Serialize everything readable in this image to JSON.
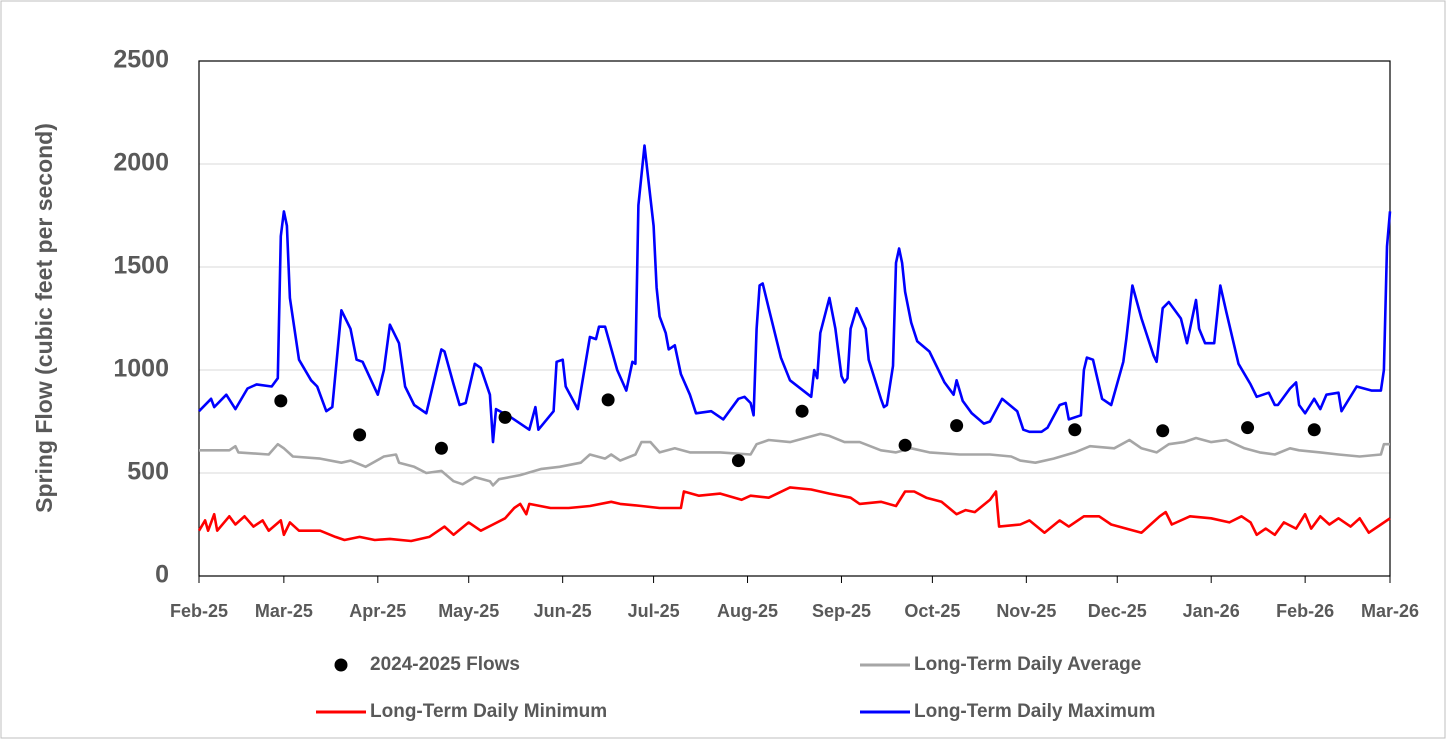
{
  "chart_data": {
    "type": "line",
    "y_label": "Spring Flow (cubic feet per second)",
    "xlim": [
      0,
      393
    ],
    "xticks": [
      {
        "value": 0,
        "label": "Feb-25"
      },
      {
        "value": 28,
        "label": "Mar-25"
      },
      {
        "value": 59,
        "label": "Apr-25"
      },
      {
        "value": 89,
        "label": "May-25"
      },
      {
        "value": 120,
        "label": "Jun-25"
      },
      {
        "value": 150,
        "label": "Jul-25"
      },
      {
        "value": 181,
        "label": "Aug-25"
      },
      {
        "value": 212,
        "label": "Sep-25"
      },
      {
        "value": 242,
        "label": "Oct-25"
      },
      {
        "value": 273,
        "label": "Nov-25"
      },
      {
        "value": 303,
        "label": "Dec-25"
      },
      {
        "value": 334,
        "label": "Jan-26"
      },
      {
        "value": 365,
        "label": "Feb-26"
      },
      {
        "value": 393,
        "label": "Mar-26"
      }
    ],
    "ylim": [
      0,
      2500
    ],
    "yticks": [
      0,
      500,
      1000,
      1500,
      2000,
      2500
    ],
    "grid": true,
    "legend": "bottom",
    "series": [
      {
        "name": "2024-2025 Flows",
        "type": "scatter",
        "color": "#000000",
        "x": [
          27,
          53,
          80,
          101,
          135,
          178,
          199,
          233,
          250,
          289,
          318,
          346,
          368
        ],
        "values": [
          850,
          685,
          620,
          770,
          855,
          560,
          800,
          635,
          730,
          710,
          705,
          720,
          710
        ]
      },
      {
        "name": "Long-Term Daily Average",
        "type": "line",
        "color": "#a6a6a6",
        "x": [
          0,
          10,
          12,
          13,
          23,
          26,
          28,
          31,
          40,
          47,
          50,
          55,
          61,
          65,
          66,
          71,
          75,
          80,
          84,
          87,
          91,
          96,
          97,
          99,
          106,
          113,
          119,
          126,
          129,
          134,
          136,
          139,
          144,
          146,
          149,
          152,
          157,
          162,
          172,
          182,
          184,
          188,
          195,
          205,
          208,
          213,
          218,
          225,
          230,
          235,
          241,
          251,
          261,
          268,
          271,
          276,
          282,
          289,
          294,
          302,
          307,
          311,
          316,
          320,
          325,
          329,
          334,
          339,
          345,
          350,
          355,
          360,
          363,
          370,
          376,
          383,
          390,
          391,
          393
        ],
        "values": [
          610,
          610,
          630,
          600,
          590,
          640,
          620,
          580,
          570,
          550,
          560,
          530,
          580,
          590,
          550,
          530,
          500,
          510,
          460,
          445,
          480,
          460,
          440,
          470,
          490,
          520,
          530,
          550,
          590,
          570,
          590,
          560,
          590,
          650,
          650,
          600,
          620,
          600,
          600,
          590,
          640,
          660,
          650,
          690,
          680,
          650,
          650,
          610,
          600,
          620,
          600,
          590,
          590,
          580,
          560,
          550,
          570,
          600,
          630,
          620,
          660,
          620,
          600,
          640,
          650,
          670,
          650,
          660,
          620,
          600,
          590,
          620,
          610,
          600,
          590,
          580,
          590,
          640,
          640
        ]
      },
      {
        "name": "Long-Term Daily Minimum",
        "type": "line",
        "color": "#ff0000",
        "x": [
          0,
          2,
          3,
          5,
          6,
          10,
          12,
          15,
          18,
          21,
          23,
          27,
          28,
          30,
          33,
          40,
          45,
          48,
          53,
          58,
          63,
          70,
          76,
          81,
          84,
          89,
          93,
          97,
          101,
          104,
          106,
          108,
          109,
          116,
          122,
          129,
          136,
          139,
          146,
          152,
          159,
          160,
          165,
          172,
          179,
          182,
          188,
          195,
          202,
          208,
          215,
          218,
          225,
          230,
          233,
          236,
          240,
          245,
          250,
          253,
          256,
          261,
          263,
          264,
          271,
          274,
          279,
          284,
          287,
          292,
          297,
          301,
          306,
          311,
          314,
          317,
          319,
          321,
          327,
          334,
          340,
          344,
          347,
          349,
          352,
          355,
          358,
          362,
          365,
          367,
          370,
          373,
          376,
          380,
          383,
          386,
          390,
          393
        ],
        "values": [
          220,
          270,
          220,
          300,
          220,
          290,
          250,
          290,
          240,
          270,
          220,
          270,
          200,
          260,
          220,
          220,
          190,
          175,
          190,
          175,
          180,
          170,
          190,
          240,
          200,
          260,
          220,
          250,
          280,
          330,
          350,
          300,
          350,
          330,
          330,
          340,
          360,
          350,
          340,
          330,
          330,
          410,
          390,
          400,
          370,
          390,
          380,
          430,
          420,
          400,
          380,
          350,
          360,
          340,
          410,
          410,
          380,
          360,
          300,
          320,
          310,
          370,
          410,
          240,
          250,
          270,
          210,
          270,
          240,
          290,
          290,
          250,
          230,
          210,
          250,
          290,
          310,
          250,
          290,
          280,
          260,
          290,
          260,
          200,
          230,
          200,
          260,
          230,
          300,
          230,
          290,
          250,
          280,
          240,
          280,
          210,
          250,
          280
        ]
      },
      {
        "name": "Long-Term Daily Maximum",
        "type": "line",
        "color": "#0000ff",
        "x": [
          0,
          4,
          5,
          9,
          12,
          16,
          19,
          24,
          26,
          27,
          28,
          29,
          30,
          33,
          37,
          39,
          42,
          44,
          47,
          50,
          52,
          54,
          59,
          61,
          63,
          66,
          68,
          71,
          75,
          80,
          81,
          84,
          86,
          88,
          91,
          93,
          96,
          97,
          98,
          103,
          109,
          111,
          112,
          117,
          118,
          120,
          121,
          125,
          129,
          131,
          132,
          134,
          138,
          141,
          143,
          144,
          145,
          147,
          148,
          150,
          151,
          152,
          154,
          155,
          157,
          159,
          162,
          164,
          169,
          173,
          178,
          180,
          182,
          183,
          184,
          185,
          186,
          188,
          192,
          195,
          202,
          203,
          204,
          205,
          208,
          210,
          212,
          213,
          214,
          215,
          217,
          220,
          221,
          225,
          226,
          227,
          229,
          230,
          231,
          232,
          233,
          235,
          237,
          241,
          246,
          249,
          250,
          252,
          255,
          259,
          261,
          265,
          270,
          272,
          274,
          278,
          280,
          284,
          286,
          287,
          291,
          292,
          293,
          295,
          298,
          301,
          305,
          306,
          308,
          311,
          315,
          316,
          318,
          320,
          324,
          326,
          329,
          330,
          332,
          335,
          337,
          339,
          343,
          347,
          349,
          353,
          355,
          356,
          360,
          362,
          363,
          365,
          368,
          370,
          372,
          376,
          377,
          382,
          387,
          390,
          391,
          392,
          393
        ],
        "values": [
          800,
          860,
          820,
          880,
          810,
          910,
          930,
          920,
          960,
          1650,
          1770,
          1700,
          1350,
          1050,
          950,
          920,
          800,
          820,
          1290,
          1200,
          1050,
          1040,
          880,
          1000,
          1220,
          1130,
          920,
          830,
          790,
          1100,
          1090,
          930,
          830,
          840,
          1030,
          1010,
          880,
          650,
          810,
          770,
          710,
          820,
          710,
          800,
          1040,
          1050,
          920,
          810,
          1160,
          1150,
          1210,
          1210,
          1000,
          900,
          1040,
          1030,
          1800,
          2090,
          1960,
          1700,
          1400,
          1260,
          1180,
          1100,
          1120,
          980,
          880,
          790,
          800,
          760,
          860,
          870,
          840,
          780,
          1200,
          1410,
          1420,
          1300,
          1060,
          950,
          870,
          1000,
          960,
          1180,
          1350,
          1200,
          970,
          940,
          960,
          1200,
          1300,
          1200,
          1050,
          860,
          820,
          830,
          1020,
          1520,
          1590,
          1520,
          1380,
          1230,
          1140,
          1090,
          940,
          880,
          950,
          850,
          790,
          740,
          750,
          860,
          800,
          710,
          700,
          700,
          720,
          830,
          840,
          760,
          780,
          1000,
          1060,
          1050,
          860,
          830,
          1040,
          1150,
          1410,
          1250,
          1070,
          1040,
          1300,
          1330,
          1250,
          1130,
          1340,
          1200,
          1130,
          1130,
          1410,
          1280,
          1030,
          930,
          870,
          890,
          830,
          830,
          910,
          940,
          830,
          790,
          860,
          810,
          880,
          890,
          800,
          920,
          900,
          900,
          1000,
          1600,
          1770
        ]
      }
    ]
  }
}
